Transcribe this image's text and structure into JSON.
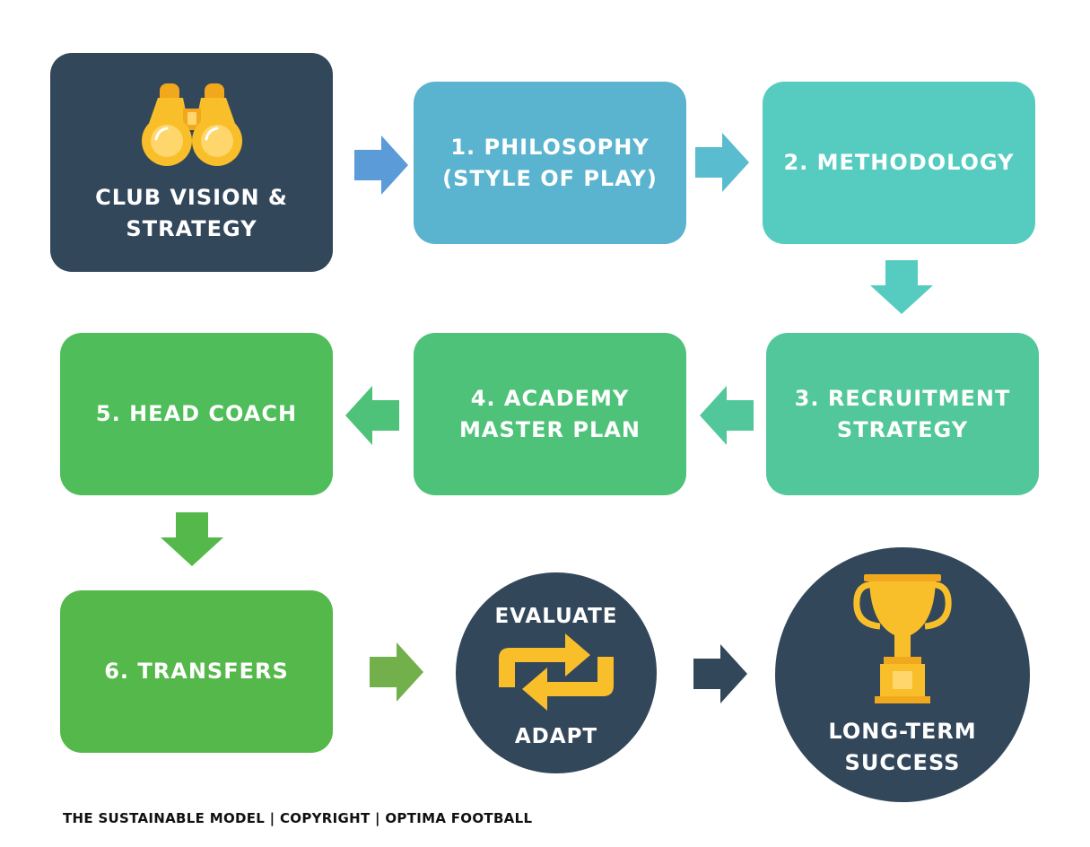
{
  "nodes": {
    "vision": {
      "label_1": "CLUB VISION &",
      "label_2": "STRATEGY",
      "icon": "binoculars-icon"
    },
    "philosophy": {
      "label_1": "1. PHILOSOPHY",
      "label_2": "(STYLE OF PLAY)"
    },
    "methodology": {
      "label": "2. METHODOLOGY"
    },
    "recruitment": {
      "label_1": "3. RECRUITMENT",
      "label_2": "STRATEGY"
    },
    "academy": {
      "label_1": "4. ACADEMY",
      "label_2": "MASTER PLAN"
    },
    "head_coach": {
      "label": "5. HEAD COACH"
    },
    "transfers": {
      "label": "6. TRANSFERS"
    },
    "evaluate": {
      "top": "EVALUATE",
      "bottom": "ADAPT",
      "icon": "cycle-arrows-icon"
    },
    "success": {
      "label_1": "LONG-TERM",
      "label_2": "SUCCESS",
      "icon": "trophy-icon"
    }
  },
  "footer": "THE SUSTAINABLE MODEL | COPYRIGHT | OPTIMA FOOTBALL",
  "colors": {
    "navy": "#33475b",
    "blue": "#5ab4cf",
    "teal": "#56ccc1",
    "mint": "#52c79b",
    "green": "#4fc27a",
    "bright_green": "#55b84a",
    "gold": "#f9bf2b"
  }
}
